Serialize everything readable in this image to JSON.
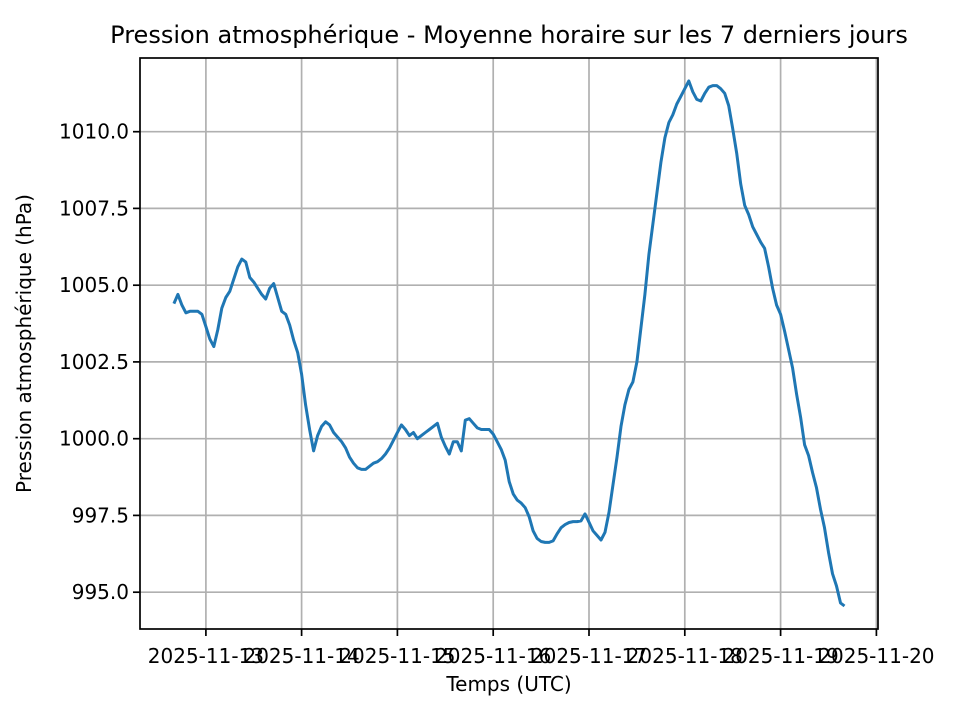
{
  "chart_data": {
    "type": "line",
    "title": "Pression atmosphérique - Moyenne horaire sur les 7 derniers jours",
    "xlabel": "Temps (UTC)",
    "ylabel": "Pression atmosphérique (hPa)",
    "grid": true,
    "legend": "none",
    "line_color": "#1f77b4",
    "grid_color": "#b0b0b0",
    "spine_color": "#000000",
    "x_tick_labels": [
      "2025-11-13",
      "2025-11-14",
      "2025-11-15",
      "2025-11-16",
      "2025-11-17",
      "2025-11-18",
      "2025-11-19",
      "2025-11-20"
    ],
    "x_ticks_hours": [
      8,
      32,
      56,
      80,
      104,
      128,
      152,
      176
    ],
    "y_ticks": [
      {
        "value": 995.0,
        "label": "995.0"
      },
      {
        "value": 997.5,
        "label": "997.5"
      },
      {
        "value": 1000.0,
        "label": "1000.0"
      },
      {
        "value": 1002.5,
        "label": "1002.5"
      },
      {
        "value": 1005.0,
        "label": "1005.0"
      },
      {
        "value": 1007.5,
        "label": "1007.5"
      },
      {
        "value": 1010.0,
        "label": "1010.0"
      }
    ],
    "x_range_hours": [
      -8.5,
      176.4
    ],
    "y_range": [
      993.8,
      1012.4
    ],
    "x_start_hour": 0,
    "x_step_hours": 1,
    "values": [
      1004.4,
      1004.7,
      1004.35,
      1004.1,
      1004.15,
      1004.15,
      1004.15,
      1004.05,
      1003.65,
      1003.25,
      1003.0,
      1003.55,
      1004.25,
      1004.6,
      1004.8,
      1005.2,
      1005.6,
      1005.85,
      1005.75,
      1005.25,
      1005.1,
      1004.9,
      1004.7,
      1004.55,
      1004.9,
      1005.05,
      1004.6,
      1004.15,
      1004.05,
      1003.7,
      1003.2,
      1002.8,
      1002.1,
      1001.1,
      1000.3,
      999.6,
      1000.1,
      1000.4,
      1000.55,
      1000.45,
      1000.2,
      1000.05,
      999.9,
      999.7,
      999.4,
      999.2,
      999.05,
      999.0,
      999.0,
      999.1,
      999.2,
      999.25,
      999.35,
      999.5,
      999.7,
      999.95,
      1000.2,
      1000.45,
      1000.3,
      1000.1,
      1000.2,
      1000.0,
      1000.1,
      1000.2,
      1000.3,
      1000.4,
      1000.5,
      1000.05,
      999.75,
      999.5,
      999.9,
      999.9,
      999.6,
      1000.6,
      1000.65,
      1000.5,
      1000.35,
      1000.3,
      1000.3,
      1000.3,
      1000.15,
      999.9,
      999.65,
      999.3,
      998.6,
      998.2,
      998.0,
      997.9,
      997.75,
      997.45,
      997.0,
      996.75,
      996.65,
      996.62,
      996.62,
      996.67,
      996.9,
      997.1,
      997.2,
      997.27,
      997.3,
      997.3,
      997.32,
      997.55,
      997.28,
      997.0,
      996.85,
      996.7,
      996.95,
      997.6,
      998.5,
      999.4,
      1000.4,
      1001.1,
      1001.6,
      1001.85,
      1002.5,
      1003.6,
      1004.7,
      1006.0,
      1007.0,
      1008.0,
      1009.0,
      1009.8,
      1010.3,
      1010.55,
      1010.9,
      1011.15,
      1011.4,
      1011.65,
      1011.3,
      1011.05,
      1011.0,
      1011.25,
      1011.45,
      1011.5,
      1011.5,
      1011.4,
      1011.25,
      1010.85,
      1010.1,
      1009.3,
      1008.3,
      1007.6,
      1007.3,
      1006.9,
      1006.65,
      1006.4,
      1006.2,
      1005.6,
      1004.9,
      1004.35,
      1004.05,
      1003.5,
      1002.9,
      1002.3,
      1001.45,
      1000.7,
      999.8,
      999.45,
      998.9,
      998.4,
      997.7,
      997.1,
      996.3,
      995.6,
      995.2,
      994.65,
      994.55
    ]
  }
}
